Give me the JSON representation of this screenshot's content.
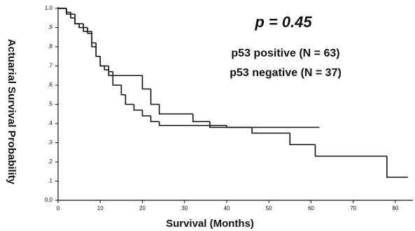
{
  "chart_data": {
    "type": "step",
    "title": "p = 0.45",
    "xlabel": "Survival  (Months)",
    "ylabel": "Actuarial Survival Probability",
    "xlim": [
      0,
      84
    ],
    "ylim": [
      0,
      1
    ],
    "xticks": [
      0,
      10,
      20,
      30,
      40,
      50,
      60,
      70,
      80
    ],
    "yticks": [
      {
        "value": 0,
        "label": "0.0"
      },
      {
        "value": 0.1,
        "label": ".1"
      },
      {
        "value": 0.2,
        "label": ".2"
      },
      {
        "value": 0.3,
        "label": ".3"
      },
      {
        "value": 0.4,
        "label": ".4"
      },
      {
        "value": 0.5,
        "label": ".5"
      },
      {
        "value": 0.6,
        "label": ".6"
      },
      {
        "value": 0.7,
        "label": ".7"
      },
      {
        "value": 0.8,
        "label": ".8"
      },
      {
        "value": 0.9,
        "label": ".9"
      },
      {
        "value": 1,
        "label": "1.0"
      }
    ],
    "series": [
      {
        "name": "p53 positive (N = 63)",
        "color": "#111111",
        "x": [
          0,
          2,
          3,
          4,
          5,
          7,
          8,
          9,
          10,
          12,
          13,
          20,
          22,
          24,
          32,
          36,
          46,
          55,
          61,
          78,
          83
        ],
        "values": [
          1.0,
          0.98,
          0.95,
          0.92,
          0.9,
          0.87,
          0.8,
          0.75,
          0.7,
          0.67,
          0.65,
          0.58,
          0.5,
          0.45,
          0.41,
          0.38,
          0.35,
          0.29,
          0.23,
          0.12,
          0.12
        ]
      },
      {
        "name": "p53 negative (N = 37)",
        "color": "#111111",
        "x": [
          0,
          2,
          4,
          6,
          8,
          9,
          10,
          11,
          12,
          13,
          15,
          16,
          18,
          20,
          22,
          24,
          40,
          62
        ],
        "values": [
          1.0,
          0.97,
          0.92,
          0.88,
          0.82,
          0.75,
          0.7,
          0.68,
          0.65,
          0.6,
          0.55,
          0.5,
          0.47,
          0.44,
          0.41,
          0.39,
          0.38,
          0.38
        ]
      }
    ]
  }
}
